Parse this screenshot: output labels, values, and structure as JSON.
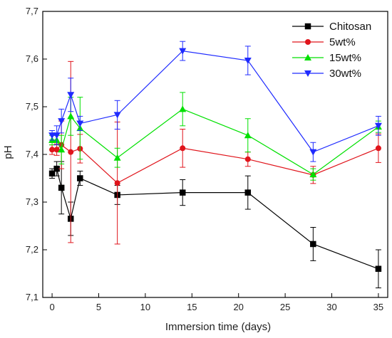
{
  "chart_data": {
    "type": "line",
    "title": "",
    "xlabel": "Immersion time (days)",
    "ylabel": "pH",
    "xlim": [
      -1,
      36
    ],
    "ylim": [
      7.1,
      7.7
    ],
    "xticks": [
      0,
      5,
      10,
      15,
      20,
      25,
      30,
      35
    ],
    "yticks": [
      7.1,
      7.2,
      7.3,
      7.4,
      7.5,
      7.6,
      7.7
    ],
    "xtick_labels": [
      "0",
      "5",
      "10",
      "15",
      "20",
      "25",
      "30",
      "35"
    ],
    "ytick_labels": [
      "7,1",
      "7,2",
      "7,3",
      "7,4",
      "7,5",
      "7,6",
      "7,7"
    ],
    "grid": false,
    "legend_position": "top-right",
    "error_bars": true,
    "x": [
      0,
      0.5,
      1,
      2,
      3,
      7,
      14,
      21,
      28,
      35
    ],
    "series": [
      {
        "name": "Chitosan",
        "color": "#000000",
        "marker": "square",
        "values": [
          7.36,
          7.37,
          7.33,
          7.265,
          7.35,
          7.315,
          7.32,
          7.32,
          7.212,
          7.16
        ],
        "errors": [
          0.01,
          0.015,
          0.055,
          0.035,
          0.015,
          0.02,
          0.027,
          0.035,
          0.035,
          0.04
        ]
      },
      {
        "name": "5wt%",
        "color": "#e0141b",
        "marker": "circle",
        "values": [
          7.41,
          7.41,
          7.42,
          7.405,
          7.412,
          7.34,
          7.413,
          7.39,
          7.357,
          7.413
        ],
        "errors": [
          0.01,
          0.012,
          0.05,
          0.19,
          0.03,
          0.128,
          0.04,
          0.015,
          0.018,
          0.03
        ]
      },
      {
        "name": "15wt%",
        "color": "#00e000",
        "marker": "triangle-up",
        "values": [
          7.43,
          7.43,
          7.41,
          7.48,
          7.455,
          7.393,
          7.495,
          7.44,
          7.358,
          7.458
        ],
        "errors": [
          0.01,
          0.01,
          0.03,
          0.04,
          0.065,
          0.02,
          0.035,
          0.035,
          0.012,
          0.012
        ]
      },
      {
        "name": "30wt%",
        "color": "#1f2bff",
        "marker": "triangle-down",
        "values": [
          7.44,
          7.44,
          7.47,
          7.525,
          7.465,
          7.483,
          7.617,
          7.597,
          7.405,
          7.46
        ],
        "errors": [
          0.01,
          0.02,
          0.025,
          0.035,
          0.015,
          0.03,
          0.02,
          0.03,
          0.02,
          0.02
        ]
      }
    ]
  }
}
